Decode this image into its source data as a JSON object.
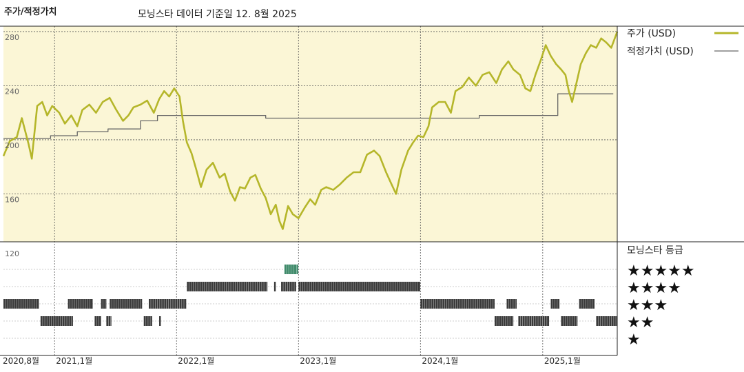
{
  "header": {
    "title": "주가/적정가치",
    "subtitle": "모닝스타 데이터 기준일 12. 8월 2025"
  },
  "colors": {
    "price": "#b5b62a",
    "fair": "#666666",
    "panel_bg": "#fbf6d6",
    "rating_gray": "#3a3a3a",
    "rating_green": "#3f8a6a"
  },
  "legend": {
    "price_label": "주가 (USD)",
    "fair_label": "적정가치 (USD)"
  },
  "rating_panel": {
    "title": "모닝스타 등급",
    "stars": [
      "★★★★★",
      "★★★★",
      "★★★",
      "★★",
      "★"
    ]
  },
  "chart_data": {
    "type": "line",
    "y_ticks": [
      {
        "value": 280,
        "label": "280"
      },
      {
        "value": 240,
        "label": "240"
      },
      {
        "value": 200,
        "label": "200"
      },
      {
        "value": 160,
        "label": "160"
      },
      {
        "value": 120,
        "label": "120"
      }
    ],
    "ylim": [
      120,
      284
    ],
    "xlim": [
      "2020-08-01",
      "2025-08-12"
    ],
    "x_ticks": [
      {
        "date": "2020-08-01",
        "label": "2020,8월"
      },
      {
        "date": "2021-01-01",
        "label": "2021,1월"
      },
      {
        "date": "2022-01-01",
        "label": "2022,1월"
      },
      {
        "date": "2023-01-01",
        "label": "2023,1월"
      },
      {
        "date": "2024-01-01",
        "label": "2024,1월"
      },
      {
        "date": "2025-01-01",
        "label": "2025,1월"
      }
    ],
    "series": [
      {
        "name": "주가 (USD)",
        "points": [
          [
            "2020-08-01",
            188
          ],
          [
            "2020-08-20",
            199
          ],
          [
            "2020-09-10",
            202
          ],
          [
            "2020-09-25",
            216
          ],
          [
            "2020-10-15",
            197
          ],
          [
            "2020-10-25",
            186
          ],
          [
            "2020-11-10",
            225
          ],
          [
            "2020-11-25",
            228
          ],
          [
            "2020-12-10",
            218
          ],
          [
            "2020-12-25",
            225
          ],
          [
            "2021-01-15",
            220
          ],
          [
            "2021-02-01",
            212
          ],
          [
            "2021-02-20",
            218
          ],
          [
            "2021-03-10",
            210
          ],
          [
            "2021-03-25",
            222
          ],
          [
            "2021-04-15",
            226
          ],
          [
            "2021-05-05",
            220
          ],
          [
            "2021-05-25",
            228
          ],
          [
            "2021-06-15",
            231
          ],
          [
            "2021-07-05",
            222
          ],
          [
            "2021-07-25",
            214
          ],
          [
            "2021-08-10",
            218
          ],
          [
            "2021-08-25",
            224
          ],
          [
            "2021-09-15",
            226
          ],
          [
            "2021-10-05",
            229
          ],
          [
            "2021-10-25",
            220
          ],
          [
            "2021-11-10",
            230
          ],
          [
            "2021-11-25",
            236
          ],
          [
            "2021-12-10",
            232
          ],
          [
            "2021-12-25",
            238
          ],
          [
            "2022-01-10",
            232
          ],
          [
            "2022-01-20",
            214
          ],
          [
            "2022-02-01",
            198
          ],
          [
            "2022-02-15",
            190
          ],
          [
            "2022-03-01",
            178
          ],
          [
            "2022-03-15",
            165
          ],
          [
            "2022-04-01",
            178
          ],
          [
            "2022-04-20",
            183
          ],
          [
            "2022-05-10",
            172
          ],
          [
            "2022-05-25",
            175
          ],
          [
            "2022-06-10",
            162
          ],
          [
            "2022-06-25",
            155
          ],
          [
            "2022-07-10",
            165
          ],
          [
            "2022-07-25",
            164
          ],
          [
            "2022-08-10",
            172
          ],
          [
            "2022-08-25",
            174
          ],
          [
            "2022-09-10",
            164
          ],
          [
            "2022-09-25",
            157
          ],
          [
            "2022-10-10",
            145
          ],
          [
            "2022-10-25",
            152
          ],
          [
            "2022-11-05",
            140
          ],
          [
            "2022-11-15",
            134
          ],
          [
            "2022-12-01",
            151
          ],
          [
            "2022-12-15",
            145
          ],
          [
            "2023-01-01",
            142
          ],
          [
            "2023-01-20",
            150
          ],
          [
            "2023-02-05",
            156
          ],
          [
            "2023-02-20",
            152
          ],
          [
            "2023-03-10",
            163
          ],
          [
            "2023-03-25",
            165
          ],
          [
            "2023-04-15",
            163
          ],
          [
            "2023-05-05",
            167
          ],
          [
            "2023-05-25",
            172
          ],
          [
            "2023-06-15",
            176
          ],
          [
            "2023-07-05",
            176
          ],
          [
            "2023-07-25",
            189
          ],
          [
            "2023-08-15",
            192
          ],
          [
            "2023-09-01",
            188
          ],
          [
            "2023-09-20",
            176
          ],
          [
            "2023-10-05",
            168
          ],
          [
            "2023-10-20",
            160
          ],
          [
            "2023-11-05",
            178
          ],
          [
            "2023-11-25",
            192
          ],
          [
            "2023-12-10",
            198
          ],
          [
            "2023-12-25",
            203
          ],
          [
            "2024-01-10",
            202
          ],
          [
            "2024-01-25",
            210
          ],
          [
            "2024-02-05",
            224
          ],
          [
            "2024-02-25",
            228
          ],
          [
            "2024-03-15",
            228
          ],
          [
            "2024-04-01",
            220
          ],
          [
            "2024-04-15",
            236
          ],
          [
            "2024-05-05",
            239
          ],
          [
            "2024-05-25",
            246
          ],
          [
            "2024-06-15",
            240
          ],
          [
            "2024-07-05",
            248
          ],
          [
            "2024-07-25",
            250
          ],
          [
            "2024-08-15",
            242
          ],
          [
            "2024-09-01",
            252
          ],
          [
            "2024-09-20",
            258
          ],
          [
            "2024-10-05",
            252
          ],
          [
            "2024-10-25",
            248
          ],
          [
            "2024-11-10",
            238
          ],
          [
            "2024-11-25",
            236
          ],
          [
            "2024-12-10",
            248
          ],
          [
            "2024-12-25",
            258
          ],
          [
            "2025-01-10",
            270
          ],
          [
            "2025-01-25",
            262
          ],
          [
            "2025-02-10",
            256
          ],
          [
            "2025-02-25",
            252
          ],
          [
            "2025-03-10",
            248
          ],
          [
            "2025-03-20",
            236
          ],
          [
            "2025-03-30",
            228
          ],
          [
            "2025-04-10",
            240
          ],
          [
            "2025-04-25",
            256
          ],
          [
            "2025-05-10",
            264
          ],
          [
            "2025-05-25",
            270
          ],
          [
            "2025-06-10",
            268
          ],
          [
            "2025-06-25",
            275
          ],
          [
            "2025-07-10",
            272
          ],
          [
            "2025-07-25",
            268
          ],
          [
            "2025-08-12",
            280
          ]
        ]
      },
      {
        "name": "적정가치 (USD)",
        "points": [
          [
            "2020-08-01",
            201
          ],
          [
            "2020-12-20",
            201
          ],
          [
            "2020-12-20",
            203
          ],
          [
            "2021-03-10",
            203
          ],
          [
            "2021-03-10",
            206
          ],
          [
            "2021-06-10",
            206
          ],
          [
            "2021-06-10",
            208
          ],
          [
            "2021-09-15",
            208
          ],
          [
            "2021-09-15",
            214
          ],
          [
            "2021-11-05",
            214
          ],
          [
            "2021-11-05",
            218
          ],
          [
            "2022-09-25",
            218
          ],
          [
            "2022-09-25",
            216
          ],
          [
            "2024-06-25",
            216
          ],
          [
            "2024-06-25",
            218
          ],
          [
            "2025-02-15",
            218
          ],
          [
            "2025-02-15",
            234
          ],
          [
            "2025-07-31",
            234
          ]
        ]
      }
    ],
    "ratings": {
      "5": [
        [
          "2022-11-20",
          "2022-12-20",
          "green"
        ],
        [
          "2022-12-20",
          "2022-12-31",
          "green"
        ]
      ],
      "4": [
        [
          "2022-02-01",
          "2022-09-30",
          "gray"
        ],
        [
          "2022-10-20",
          "2022-10-25",
          "gray"
        ],
        [
          "2022-11-10",
          "2022-12-25",
          "gray"
        ],
        [
          "2023-01-01",
          "2023-12-31",
          "gray"
        ]
      ],
      "3": [
        [
          "2020-08-01",
          "2020-11-15",
          "gray"
        ],
        [
          "2021-02-10",
          "2021-04-25",
          "gray"
        ],
        [
          "2021-05-20",
          "2021-06-05",
          "gray"
        ],
        [
          "2021-06-15",
          "2021-09-20",
          "gray"
        ],
        [
          "2021-10-10",
          "2022-01-30",
          "gray"
        ],
        [
          "2024-01-01",
          "2024-08-10",
          "gray"
        ],
        [
          "2024-09-15",
          "2024-10-15",
          "gray"
        ],
        [
          "2025-01-25",
          "2025-02-20",
          "gray"
        ],
        [
          "2025-04-20",
          "2025-06-05",
          "gray"
        ]
      ],
      "2": [
        [
          "2020-11-20",
          "2021-02-25",
          "gray"
        ],
        [
          "2021-05-01",
          "2021-05-20",
          "gray"
        ],
        [
          "2021-06-05",
          "2021-06-20",
          "gray"
        ],
        [
          "2021-09-25",
          "2021-10-20",
          "gray"
        ],
        [
          "2021-11-10",
          "2021-11-15",
          "gray"
        ],
        [
          "2024-08-10",
          "2024-10-05",
          "gray"
        ],
        [
          "2024-10-20",
          "2025-01-20",
          "gray"
        ],
        [
          "2025-02-25",
          "2025-04-15",
          "gray"
        ],
        [
          "2025-06-10",
          "2025-08-12",
          "gray"
        ]
      ],
      "1": []
    }
  }
}
